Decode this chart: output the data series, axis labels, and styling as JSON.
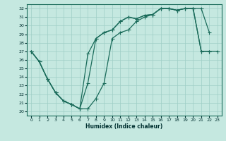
{
  "xlabel": "Humidex (Indice chaleur)",
  "xlim": [
    -0.5,
    23.5
  ],
  "ylim": [
    19.5,
    32.5
  ],
  "xticks": [
    0,
    1,
    2,
    3,
    4,
    5,
    6,
    7,
    8,
    9,
    10,
    11,
    12,
    13,
    14,
    15,
    16,
    17,
    18,
    19,
    20,
    21,
    22,
    23
  ],
  "yticks": [
    20,
    21,
    22,
    23,
    24,
    25,
    26,
    27,
    28,
    29,
    30,
    31,
    32
  ],
  "background_color": "#c5e8e0",
  "grid_color": "#9ecec5",
  "line_color": "#1a6b5a",
  "curve1_x": [
    0,
    1,
    2,
    3,
    4,
    5,
    6,
    7,
    8,
    9,
    10,
    11,
    12,
    13,
    14,
    15,
    16,
    17,
    18,
    19,
    20,
    21,
    22
  ],
  "curve1_y": [
    27.0,
    25.8,
    23.8,
    22.2,
    21.2,
    20.8,
    20.3,
    26.7,
    28.5,
    29.2,
    29.5,
    30.5,
    31.0,
    30.8,
    31.2,
    31.3,
    32.0,
    32.0,
    31.8,
    32.0,
    32.0,
    32.0,
    29.2
  ],
  "curve2_x": [
    0,
    1,
    2,
    3,
    4,
    5,
    6,
    7,
    8,
    9,
    10,
    11,
    12,
    13,
    14,
    15,
    16,
    17,
    18,
    19,
    20,
    21,
    22
  ],
  "curve2_y": [
    27.0,
    25.8,
    23.8,
    22.2,
    21.2,
    20.8,
    20.3,
    23.3,
    28.5,
    29.2,
    29.5,
    30.5,
    31.0,
    30.8,
    31.2,
    31.3,
    32.0,
    32.0,
    31.8,
    32.0,
    32.0,
    27.0,
    27.0
  ],
  "curve3_x": [
    0,
    1,
    2,
    3,
    4,
    5,
    6,
    7,
    8,
    9,
    10,
    11,
    12,
    13,
    14,
    15,
    16,
    17,
    18,
    19,
    20,
    21,
    22,
    23
  ],
  "curve3_y": [
    27.0,
    25.8,
    23.8,
    22.2,
    21.2,
    20.8,
    20.3,
    20.3,
    21.5,
    23.3,
    28.5,
    29.2,
    29.5,
    30.5,
    31.0,
    31.3,
    32.0,
    32.0,
    31.8,
    32.0,
    32.0,
    27.0,
    27.0,
    27.0
  ]
}
